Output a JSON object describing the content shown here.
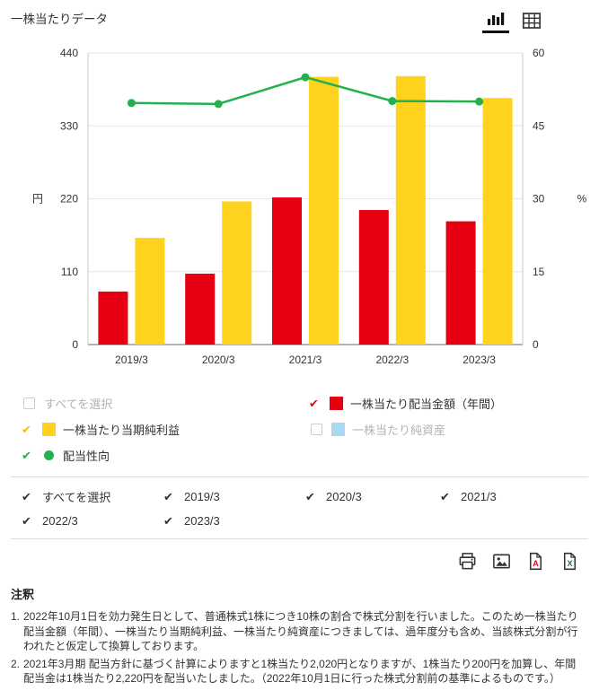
{
  "header": {
    "title": "一株当たりデータ"
  },
  "view_toggle": {
    "active": "chart",
    "icons": [
      "bar-chart-icon",
      "table-icon"
    ]
  },
  "colors": {
    "red": "#e60012",
    "yellow": "#ffd21e",
    "yellow_check": "#f3c200",
    "light_blue": "#a8d9f0",
    "green": "#22b14c",
    "black_check": "#333333",
    "disabled_text": "#b3b3b3"
  },
  "chart_data": {
    "type": "combo",
    "categories": [
      "2019/3",
      "2020/3",
      "2021/3",
      "2022/3",
      "2023/3"
    ],
    "series": [
      {
        "name": "一株当たり配当金額（年間）",
        "type": "bar",
        "axis": "left",
        "color": "#e60012",
        "values": [
          80,
          107,
          222,
          203,
          186
        ]
      },
      {
        "name": "一株当たり当期純利益",
        "type": "bar",
        "axis": "left",
        "color": "#ffd21e",
        "values": [
          161,
          216,
          404,
          405,
          372
        ]
      },
      {
        "name": "配当性向",
        "type": "line",
        "axis": "right",
        "color": "#22b14c",
        "values": [
          49.7,
          49.5,
          55.0,
          50.1,
          50.0
        ]
      }
    ],
    "left_axis": {
      "unit": "円",
      "ticks": [
        0,
        110,
        220,
        330,
        440
      ],
      "max": 440
    },
    "right_axis": {
      "unit": "%",
      "ticks": [
        0,
        15,
        30,
        45,
        60
      ],
      "max": 60
    },
    "grid": true,
    "legend_position": "bottom"
  },
  "series_legend": {
    "items": [
      {
        "label": "すべてを選択",
        "checked": false
      },
      {
        "label": "一株当たり配当金額（年間）",
        "checked": true,
        "check_color": "#e60012",
        "swatch": "#e60012",
        "swatch_shape": "square"
      },
      {
        "label": "一株当たり当期純利益",
        "checked": true,
        "check_color": "#f3c200",
        "swatch": "#ffd21e",
        "swatch_shape": "square"
      },
      {
        "label": "一株当たり純資産",
        "checked": false,
        "swatch": "#a8d9f0",
        "swatch_shape": "square"
      },
      {
        "label": "配当性向",
        "checked": true,
        "check_color": "#22b14c",
        "swatch": "#22b14c",
        "swatch_shape": "circle"
      }
    ]
  },
  "year_filter": {
    "items": [
      {
        "label": "すべてを選択",
        "checked": true
      },
      {
        "label": "2019/3",
        "checked": true
      },
      {
        "label": "2020/3",
        "checked": true
      },
      {
        "label": "2021/3",
        "checked": true
      },
      {
        "label": "2022/3",
        "checked": true
      },
      {
        "label": "2023/3",
        "checked": true
      }
    ]
  },
  "export": {
    "icons": [
      "printer-icon",
      "image-icon",
      "pdf-icon",
      "excel-icon"
    ]
  },
  "notes": {
    "heading": "注釈",
    "items": [
      {
        "num": "1.",
        "text": "2022年10月1日を効力発生日として、普通株式1株につき10株の割合で株式分割を行いました。このため一株当たり配当金額（年間）、一株当たり当期純利益、一株当たり純資産につきましては、過年度分も含め、当該株式分割が行われたと仮定して換算しております。"
      },
      {
        "num": "2.",
        "text": "2021年3月期 配当方針に基づく計算によりますと1株当たり2,020円となりますが、1株当たり200円を加算し、年間配当金は1株当たり2,220円を配当いたしました。（2022年10月1日に行った株式分割前の基準によるものです。）"
      }
    ]
  }
}
